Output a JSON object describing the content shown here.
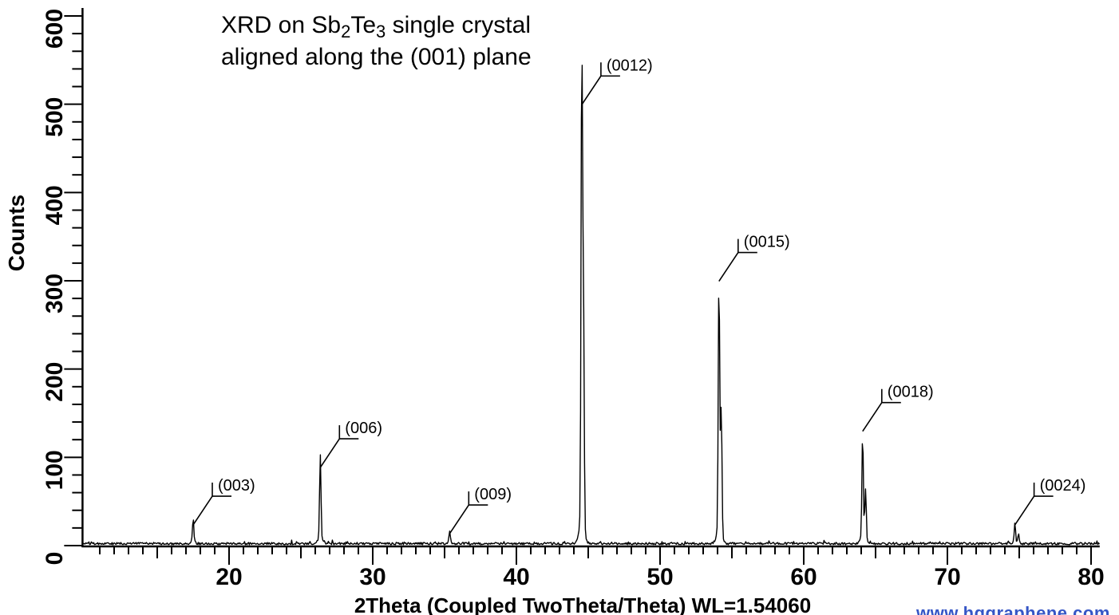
{
  "title": {
    "seg_a": "XRD on Sb",
    "sub_1": "2",
    "seg_b": "Te",
    "sub_2": "3",
    "seg_c": " single crystal",
    "line2": "aligned along the (001) plane"
  },
  "watermark": {
    "text": "www.hqgraphene.com",
    "color": "#3656c6"
  },
  "chart_data": {
    "type": "line",
    "title": "XRD on Sb2Te3 single crystal aligned along the (001) plane",
    "xlabel": "2Theta (Coupled TwoTheta/Theta) WL=1.54060",
    "ylabel": "Counts",
    "xlim": [
      9.8,
      80.6
    ],
    "ylim": [
      0,
      609
    ],
    "x_major_ticks": [
      20,
      30,
      40,
      50,
      60,
      70,
      80
    ],
    "x_minor_step": 1,
    "x_medium_step": 5,
    "y_major_ticks": [
      0,
      100,
      200,
      300,
      400,
      500,
      600
    ],
    "y_minor_step": 20,
    "grid": false,
    "legend": false,
    "line_color": "#000000",
    "baseline_noise_counts": 3,
    "peaks": [
      {
        "label": "(003)",
        "two_theta": 17.5,
        "counts": 30,
        "label_corner_counts": 56
      },
      {
        "label": "(006)",
        "two_theta": 26.35,
        "counts": 103,
        "label_corner_counts": 121
      },
      {
        "label": "(009)",
        "two_theta": 35.35,
        "counts": 15,
        "label_corner_counts": 46
      },
      {
        "label": "(0012)",
        "two_theta": 44.55,
        "counts": 557,
        "label_corner_counts": 532
      },
      {
        "label": "(0015)",
        "two_theta": 54.1,
        "counts": 308,
        "label_corner_counts": 332
      },
      {
        "label": "(0018)",
        "two_theta": 64.1,
        "counts": 128,
        "label_corner_counts": 162
      },
      {
        "label": "(0024)",
        "two_theta": 74.7,
        "counts": 25,
        "label_corner_counts": 56
      }
    ]
  }
}
